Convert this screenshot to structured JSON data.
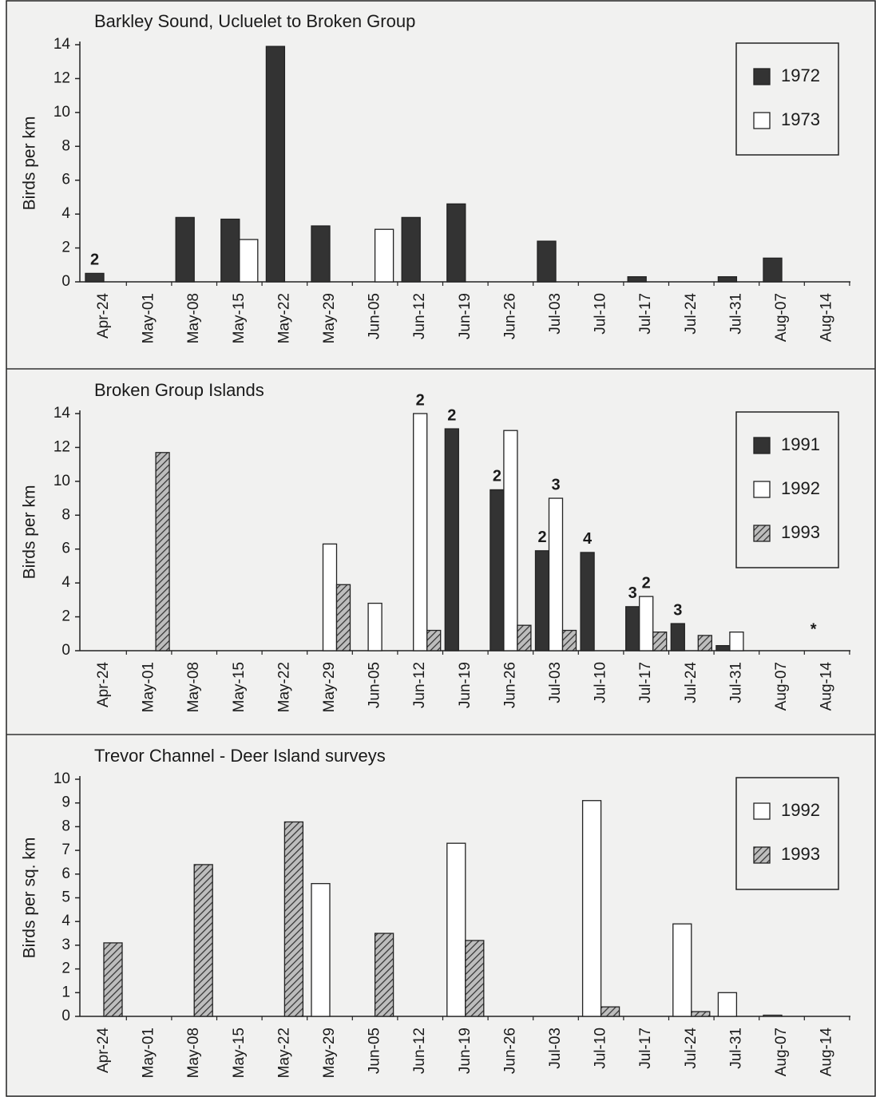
{
  "chart_data": [
    {
      "type": "bar",
      "title": "Barkley Sound, Ucluelet to Broken Group",
      "ylabel": "Birds per km",
      "categories": [
        "Apr-24",
        "May-01",
        "May-08",
        "May-15",
        "May-22",
        "May-29",
        "Jun-05",
        "Jun-12",
        "Jun-19",
        "Jun-26",
        "Jul-03",
        "Jul-10",
        "Jul-17",
        "Jul-24",
        "Jul-31",
        "Aug-07",
        "Aug-14"
      ],
      "series": [
        {
          "name": "1972",
          "color": "#333333",
          "values": [
            0.5,
            null,
            3.8,
            3.7,
            13.9,
            3.3,
            null,
            3.8,
            4.6,
            null,
            2.4,
            null,
            0.3,
            null,
            0.3,
            1.4,
            null
          ],
          "annotations": [
            "2",
            null,
            null,
            null,
            null,
            null,
            null,
            null,
            null,
            null,
            null,
            null,
            null,
            null,
            null,
            null,
            null
          ]
        },
        {
          "name": "1973",
          "color": "#ffffff",
          "values": [
            null,
            null,
            null,
            2.5,
            null,
            null,
            3.1,
            null,
            null,
            null,
            null,
            null,
            null,
            null,
            null,
            null,
            null
          ]
        }
      ],
      "ylim": [
        0,
        14
      ],
      "yticks": [
        0,
        2,
        4,
        6,
        8,
        10,
        12,
        14
      ],
      "legend": "upper right"
    },
    {
      "type": "bar",
      "title": "Broken Group Islands",
      "ylabel": "Birds per km",
      "categories": [
        "Apr-24",
        "May-01",
        "May-08",
        "May-15",
        "May-22",
        "May-29",
        "Jun-05",
        "Jun-12",
        "Jun-19",
        "Jun-26",
        "Jul-03",
        "Jul-10",
        "Jul-17",
        "Jul-24",
        "Jul-31",
        "Aug-07",
        "Aug-14"
      ],
      "series": [
        {
          "name": "1991",
          "color": "#333333",
          "values": [
            null,
            null,
            null,
            null,
            null,
            null,
            null,
            null,
            13.1,
            9.5,
            5.9,
            5.8,
            2.6,
            1.6,
            0.3,
            null,
            null
          ],
          "annotations": [
            null,
            null,
            null,
            null,
            null,
            null,
            null,
            null,
            "2",
            "2",
            "2",
            "4",
            "3",
            "3",
            null,
            null,
            "*"
          ]
        },
        {
          "name": "1992",
          "color": "#ffffff",
          "values": [
            null,
            null,
            null,
            null,
            null,
            6.3,
            2.8,
            14.0,
            null,
            13.0,
            9.0,
            null,
            3.2,
            null,
            1.1,
            null,
            null
          ],
          "annotations": [
            null,
            null,
            null,
            null,
            null,
            null,
            null,
            "2",
            null,
            null,
            "3",
            null,
            "2",
            null,
            null,
            null,
            null
          ]
        },
        {
          "name": "1993",
          "color": "#8a8a8a",
          "pattern": "hatch",
          "values": [
            null,
            11.7,
            null,
            null,
            null,
            3.9,
            null,
            1.2,
            null,
            1.5,
            1.2,
            null,
            1.1,
            0.9,
            null,
            null,
            null
          ]
        }
      ],
      "ylim": [
        0,
        14
      ],
      "yticks": [
        0,
        2,
        4,
        6,
        8,
        10,
        12,
        14
      ],
      "legend": "upper right"
    },
    {
      "type": "bar",
      "title": "Trevor Channel - Deer Island surveys",
      "ylabel": "Birds per sq. km",
      "categories": [
        "Apr-24",
        "May-01",
        "May-08",
        "May-15",
        "May-22",
        "May-29",
        "Jun-05",
        "Jun-12",
        "Jun-19",
        "Jun-26",
        "Jul-03",
        "Jul-10",
        "Jul-17",
        "Jul-24",
        "Jul-31",
        "Aug-07",
        "Aug-14"
      ],
      "series": [
        {
          "name": "1992",
          "color": "#ffffff",
          "values": [
            null,
            null,
            null,
            null,
            null,
            5.6,
            null,
            null,
            7.3,
            null,
            null,
            9.1,
            null,
            3.9,
            1.0,
            0.05,
            null
          ]
        },
        {
          "name": "1993",
          "color": "#8a8a8a",
          "pattern": "hatch",
          "values": [
            3.1,
            null,
            6.4,
            null,
            8.2,
            null,
            3.5,
            null,
            3.2,
            null,
            null,
            0.4,
            null,
            0.2,
            null,
            null,
            null
          ]
        }
      ],
      "ylim": [
        0,
        10
      ],
      "yticks": [
        0,
        1,
        2,
        3,
        4,
        5,
        6,
        7,
        8,
        9,
        10
      ],
      "legend": "upper right"
    }
  ]
}
